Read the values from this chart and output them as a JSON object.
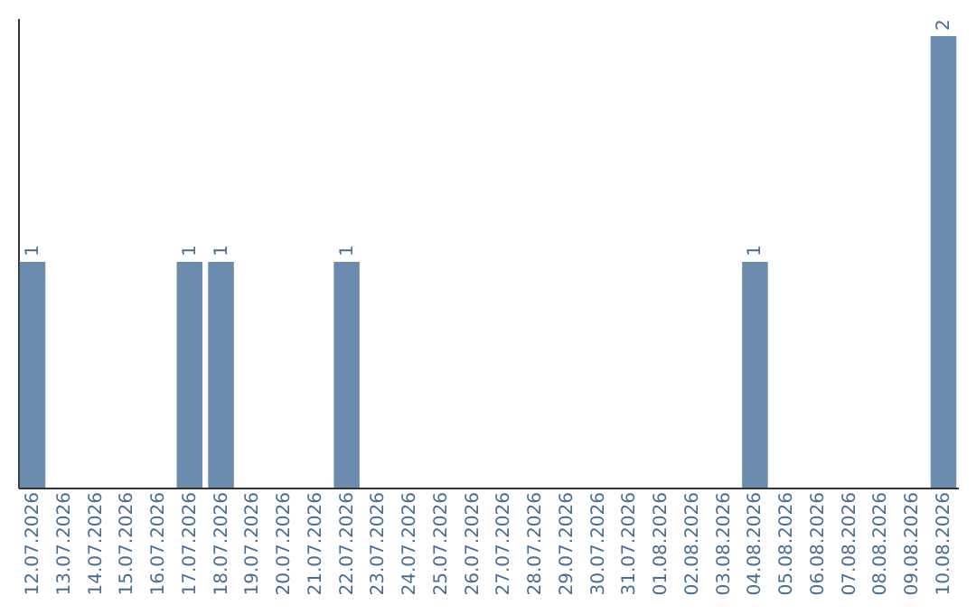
{
  "chart_data": {
    "type": "bar",
    "categories": [
      "12.07.2026",
      "13.07.2026",
      "14.07.2026",
      "15.07.2026",
      "16.07.2026",
      "17.07.2026",
      "18.07.2026",
      "19.07.2026",
      "20.07.2026",
      "21.07.2026",
      "22.07.2026",
      "23.07.2026",
      "24.07.2026",
      "25.07.2026",
      "26.07.2026",
      "27.07.2026",
      "28.07.2026",
      "29.07.2026",
      "30.07.2026",
      "31.07.2026",
      "01.08.2026",
      "02.08.2026",
      "03.08.2026",
      "04.08.2026",
      "05.08.2026",
      "06.08.2026",
      "07.08.2026",
      "08.08.2026",
      "09.08.2026",
      "10.08.2026"
    ],
    "values": [
      1,
      0,
      0,
      0,
      0,
      1,
      1,
      0,
      0,
      0,
      1,
      0,
      0,
      0,
      0,
      0,
      0,
      0,
      0,
      0,
      0,
      0,
      0,
      1,
      0,
      0,
      0,
      0,
      0,
      2
    ],
    "value_labels": [
      "1",
      null,
      null,
      null,
      null,
      "1",
      "1",
      null,
      null,
      null,
      "1",
      null,
      null,
      null,
      null,
      null,
      null,
      null,
      null,
      null,
      null,
      null,
      null,
      "1",
      null,
      null,
      null,
      null,
      null,
      "2"
    ],
    "color": "#6b8caf",
    "ylim": [
      0,
      2.08
    ],
    "tick_labels": "x"
  }
}
